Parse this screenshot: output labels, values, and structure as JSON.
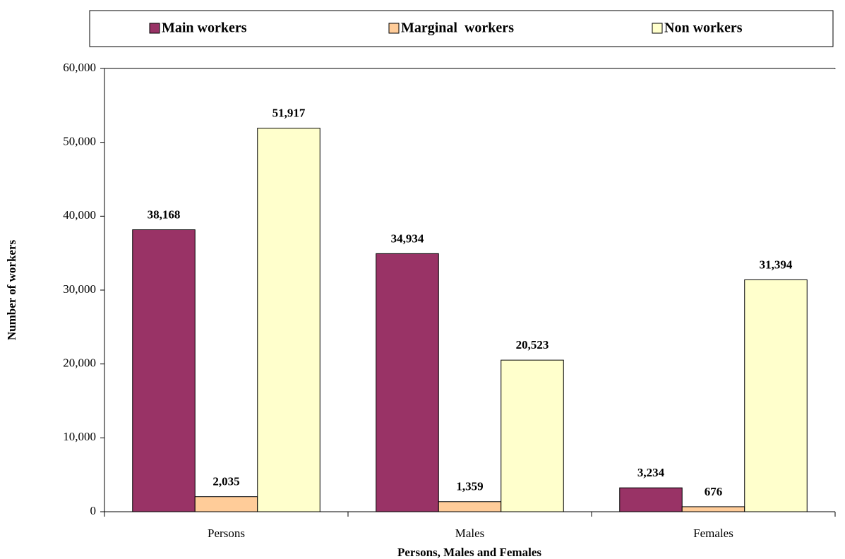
{
  "chart_data": {
    "type": "bar",
    "categories": [
      "Persons",
      "Males",
      "Females"
    ],
    "series": [
      {
        "name": "Main workers",
        "color": "#993366",
        "values": [
          38168,
          34934,
          3234
        ],
        "value_labels": [
          "38,168",
          "34,934",
          "3,234"
        ]
      },
      {
        "name": "Marginal  workers",
        "color": "#ffcc99",
        "values": [
          2035,
          1359,
          676
        ],
        "value_labels": [
          "2,035",
          "1,359",
          "676"
        ]
      },
      {
        "name": "Non workers",
        "color": "#ffffcc",
        "values": [
          51917,
          20523,
          31394
        ],
        "value_labels": [
          "51,917",
          "20,523",
          "31,394"
        ]
      }
    ],
    "ylim": [
      0,
      60000
    ],
    "yticks": [
      0,
      {
        "value": 10000,
        "label": "10,000"
      },
      {
        "value": 20000,
        "label": "20,000"
      },
      {
        "value": 30000,
        "label": "30,000"
      },
      {
        "value": 40000,
        "label": "40,000"
      },
      {
        "value": 50000,
        "label": "50,000"
      },
      {
        "value": 60000,
        "label": "60,000"
      }
    ],
    "x_label": "Persons, Males and Females",
    "y_label": "Number of workers",
    "legend": "top"
  }
}
